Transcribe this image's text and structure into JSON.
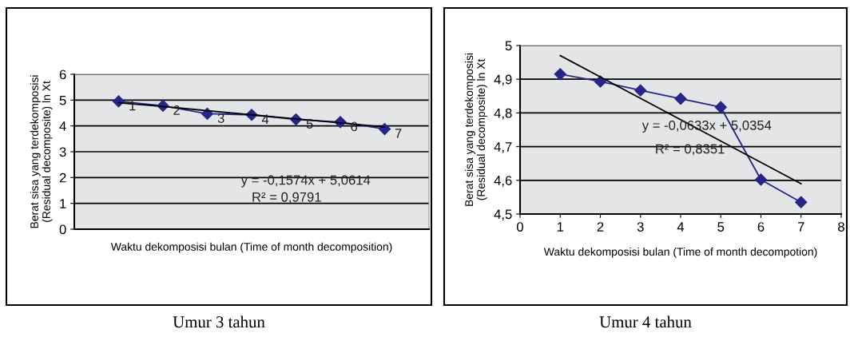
{
  "chart_data": [
    {
      "type": "line",
      "title": "Umur 3 tahun",
      "ylabel": "Berat sisa yang terdekomposisi\n(Residual decomposite) ln Xt",
      "xlabel": "Waktu dekomposisi bulan (Time of month decomposition)",
      "categories": [
        "1",
        "2",
        "3",
        "4",
        "5",
        "6",
        "7"
      ],
      "series": [
        {
          "color": "#25258a",
          "values": [
            4.95,
            4.78,
            4.47,
            4.43,
            4.25,
            4.15,
            3.88
          ],
          "marker": "diamond"
        },
        {
          "type": "line",
          "color": "#000000",
          "values": [
            4.9,
            4.75,
            4.59,
            4.43,
            4.27,
            4.12,
            3.96
          ],
          "marker": "none"
        }
      ],
      "ylim": [
        0,
        6
      ],
      "yticks": [
        0,
        1,
        2,
        3,
        4,
        5,
        6
      ],
      "grid": "y",
      "legend": false,
      "annotations": [
        "y = -0,1574x + 5,0614",
        "R² = 0,9791"
      ]
    },
    {
      "type": "line",
      "title": "Umur 4 tahun",
      "ylabel": "Berat sisa yang terdekomposisi\n(Residual decomposite) ln Xt",
      "xlabel": "Waktu dekomposisi bulan (Time of month decompotion)",
      "x": [
        1,
        2,
        3,
        4,
        5,
        6,
        7
      ],
      "series": [
        {
          "color": "#25258a",
          "values": [
            4.915,
            4.893,
            4.867,
            4.842,
            4.817,
            4.602,
            4.535
          ],
          "marker": "diamond"
        },
        {
          "type": "line",
          "color": "#000000",
          "x": [
            1,
            7
          ],
          "values": [
            4.97,
            4.59
          ],
          "marker": "none"
        }
      ],
      "xlim": [
        0,
        8
      ],
      "xticks": [
        0,
        1,
        2,
        3,
        4,
        5,
        6,
        7,
        8
      ],
      "ylim": [
        4.5,
        5
      ],
      "yticks": [
        {
          "value": 4.5,
          "label": "4,5"
        },
        {
          "value": 4.6,
          "label": "4,6"
        },
        {
          "value": 4.7,
          "label": "4,7"
        },
        {
          "value": 4.8,
          "label": "4,8"
        },
        {
          "value": 4.9,
          "label": "4,9"
        },
        {
          "value": 5,
          "label": "5"
        }
      ],
      "grid": "y",
      "legend": false,
      "annotations": [
        "y = -0,0633x + 5,0354",
        "R² = 0,8351"
      ]
    }
  ]
}
